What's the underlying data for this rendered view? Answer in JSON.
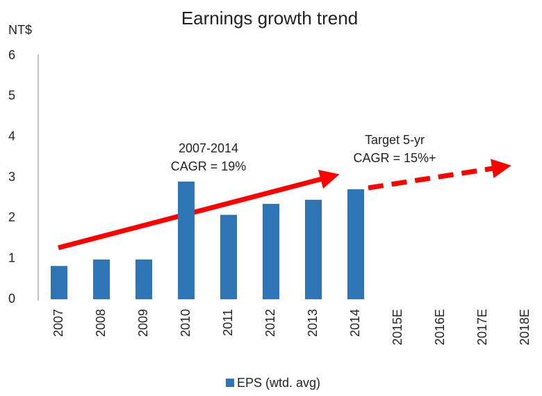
{
  "chart_data": {
    "type": "bar",
    "title": "Earnings growth trend",
    "y_label": "NT$",
    "categories": [
      "2007",
      "2008",
      "2009",
      "2010",
      "2011",
      "2012",
      "2013",
      "2014",
      "2015E",
      "2016E",
      "2017E",
      "2018E"
    ],
    "series": [
      {
        "name": "EPS (wtd. avg)",
        "color": "#2e75b6",
        "values": [
          0.82,
          0.98,
          0.98,
          2.9,
          2.08,
          2.35,
          2.45,
          2.71,
          null,
          null,
          null,
          null
        ]
      }
    ],
    "ylim": [
      0,
      6
    ],
    "yticks": [
      0,
      1,
      2,
      3,
      4,
      5,
      6
    ],
    "grid": false,
    "legend": "bottom",
    "annotations": [
      "2007-2014",
      "CAGR = 19%",
      "Target 5-yr",
      "CAGR = 15%+"
    ]
  }
}
